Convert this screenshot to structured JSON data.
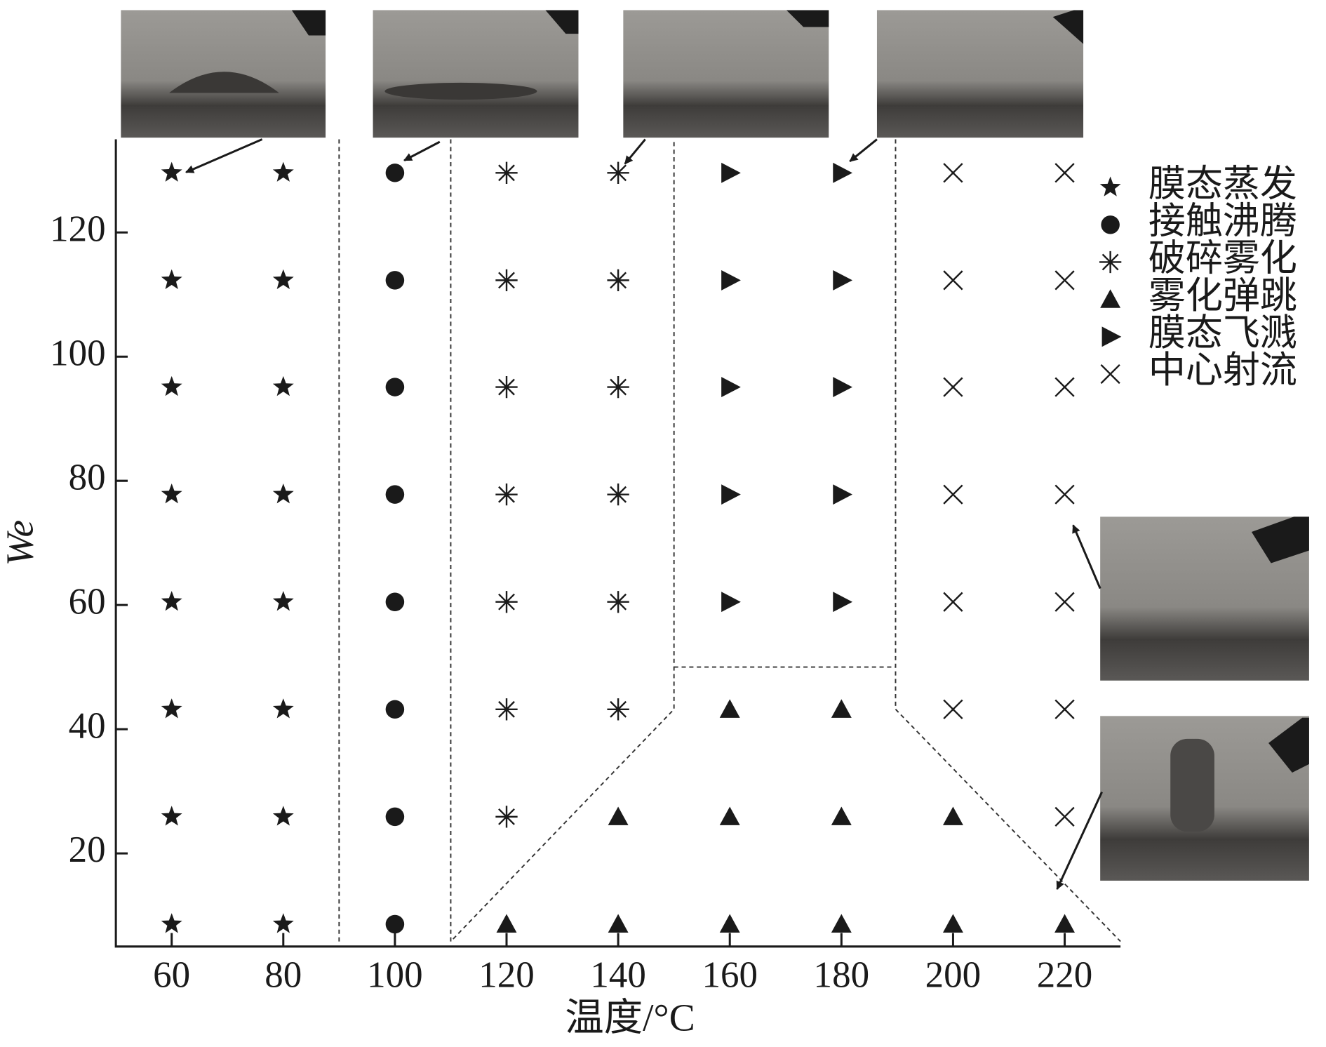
{
  "chart_data": {
    "type": "scatter",
    "xlabel": "温度/°C",
    "ylabel": "We",
    "xlim": [
      50,
      230
    ],
    "ylim": [
      5,
      135
    ],
    "xticks": [
      60,
      80,
      100,
      120,
      140,
      160,
      180,
      200,
      220
    ],
    "yticks": [
      20,
      40,
      60,
      80,
      100,
      120
    ],
    "legend": "right",
    "series": [
      {
        "name": "膜态蒸发",
        "color": "#1a1a1a",
        "marker": "star",
        "x": [
          60,
          60,
          60,
          60,
          60,
          60,
          60,
          60,
          80,
          80,
          80,
          80,
          80,
          80,
          80,
          80
        ],
        "values": [
          8.6,
          25.9,
          43.2,
          60.5,
          77.8,
          95.1,
          112.3,
          129.6,
          8.6,
          25.9,
          43.2,
          60.5,
          77.8,
          95.1,
          112.3,
          129.6
        ]
      },
      {
        "name": "接触沸腾",
        "color": "#1a1a1a",
        "marker": "circle",
        "x": [
          100,
          100,
          100,
          100,
          100,
          100,
          100,
          100
        ],
        "values": [
          8.6,
          25.9,
          43.2,
          60.5,
          77.8,
          95.1,
          112.3,
          129.6
        ]
      },
      {
        "name": "破碎雾化",
        "color": "#1a1a1a",
        "marker": "asterisk",
        "x": [
          120,
          120,
          120,
          120,
          120,
          120,
          120,
          140,
          140,
          140,
          140,
          140,
          140
        ],
        "values": [
          25.9,
          43.2,
          60.5,
          77.8,
          95.1,
          112.3,
          129.6,
          43.2,
          60.5,
          77.8,
          95.1,
          112.3,
          129.6
        ]
      },
      {
        "name": "雾化弹跳",
        "color": "#1a1a1a",
        "marker": "triangle",
        "x": [
          120,
          140,
          140,
          160,
          160,
          160,
          180,
          180,
          180,
          200,
          200,
          220
        ],
        "values": [
          8.6,
          8.6,
          25.9,
          8.6,
          25.9,
          43.2,
          8.6,
          25.9,
          43.2,
          8.6,
          25.9,
          8.6
        ]
      },
      {
        "name": "膜态飞溅",
        "color": "#1a1a1a",
        "marker": "triangle-right",
        "x": [
          160,
          160,
          160,
          160,
          160,
          180,
          180,
          180,
          180,
          180
        ],
        "values": [
          60.5,
          77.8,
          95.1,
          112.3,
          129.6,
          60.5,
          77.8,
          95.1,
          112.3,
          129.6
        ]
      },
      {
        "name": "中心射流",
        "color": "#1a1a1a",
        "marker": "x",
        "x": [
          200,
          200,
          200,
          200,
          200,
          200,
          220,
          220,
          220,
          220,
          220,
          220,
          220
        ],
        "values": [
          43.2,
          60.5,
          77.8,
          95.1,
          112.3,
          129.6,
          25.9,
          43.2,
          60.5,
          77.8,
          95.1,
          112.3,
          129.6
        ]
      }
    ]
  }
}
